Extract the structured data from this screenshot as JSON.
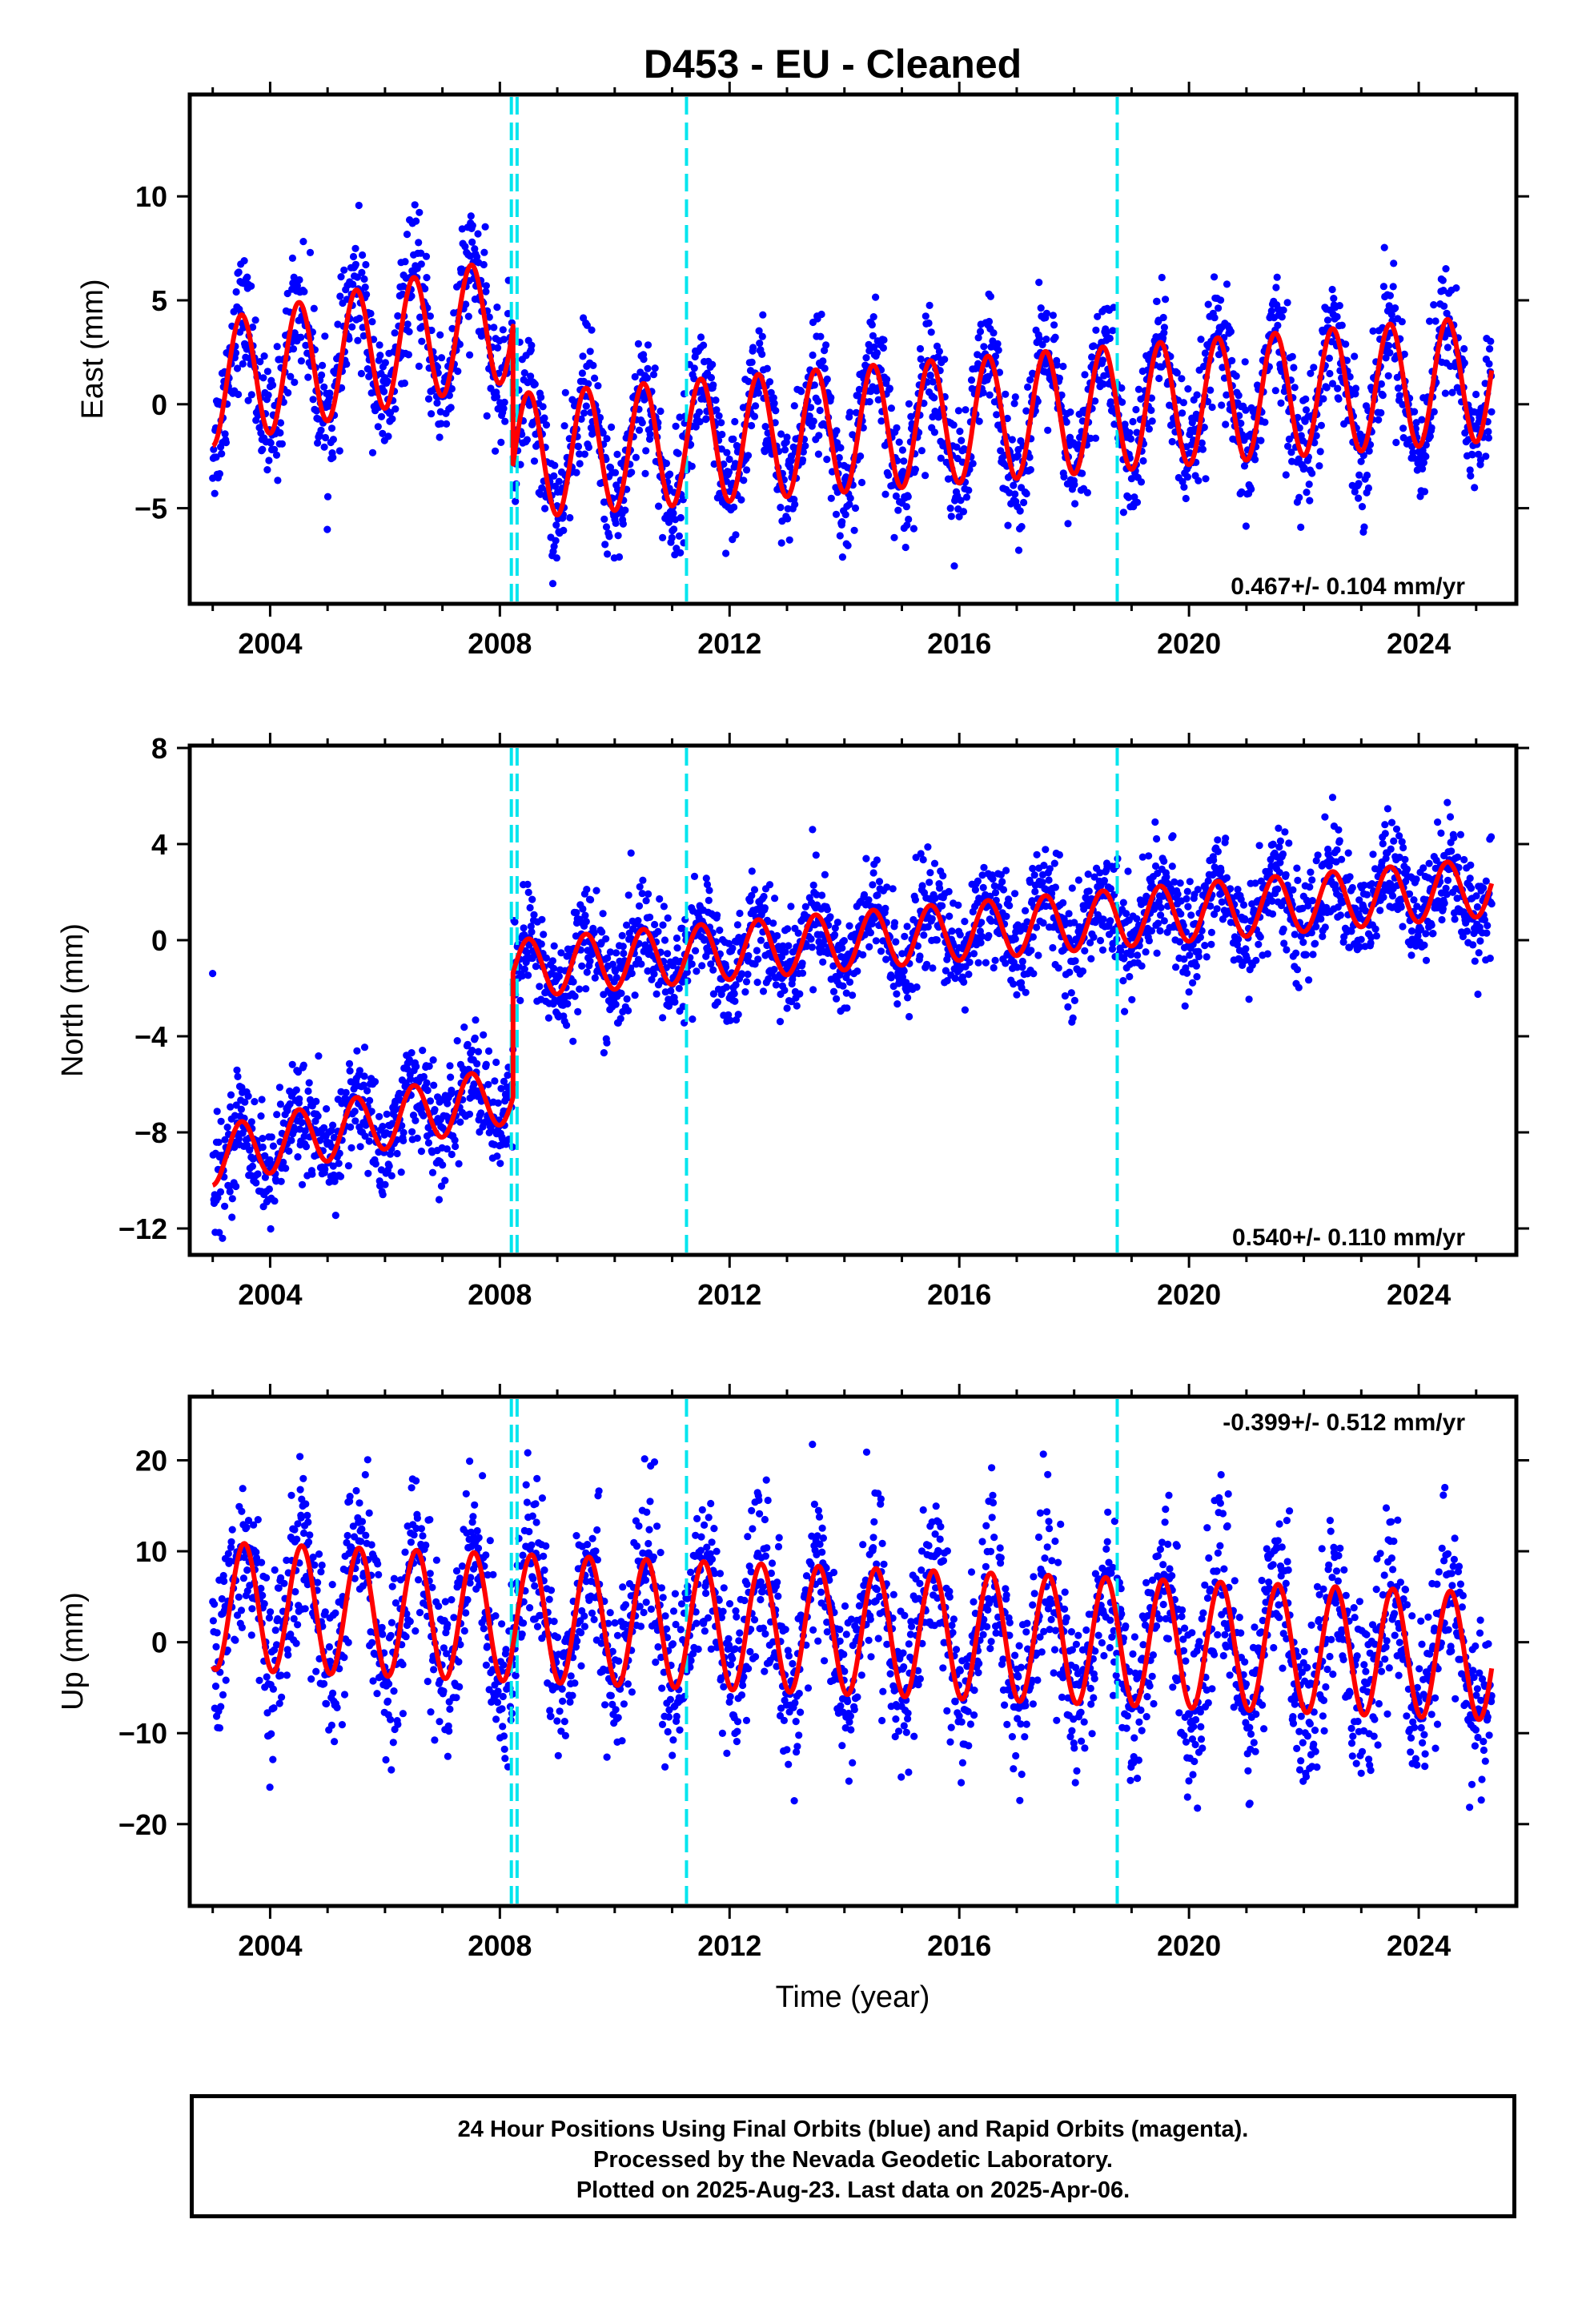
{
  "title": "D453  - EU - Cleaned",
  "xlabel": "Time (year)",
  "footer": {
    "line1": "24 Hour Positions Using Final Orbits (blue) and Rapid Orbits (magenta).",
    "line2": "Processed by the Nevada Geodetic Laboratory.",
    "line3": "Plotted on 2025-Aug-23. Last data on 2025-Apr-06."
  },
  "colors": {
    "observations": "#0000ff",
    "model": "#ff0000",
    "steps": "#00e5ee"
  },
  "chart_data": [
    {
      "type": "scatter",
      "ylabel": "East (mm)",
      "rate_label": "0.467+/- 0.104 mm/yr",
      "xlim": [
        2002.6,
        2025.7
      ],
      "ylim": [
        -9.6,
        14.9
      ],
      "xticks": [
        2004,
        2008,
        2012,
        2016,
        2020,
        2024
      ],
      "xtick_labels": [
        "2004",
        "2008",
        "2012",
        "2016",
        "2020",
        "2024"
      ],
      "yticks": [
        -5,
        0,
        5,
        10
      ],
      "ytick_labels": [
        "−5",
        "0",
        "5",
        "10"
      ],
      "step_lines": [
        2008.2,
        2008.3,
        2011.25,
        2018.75
      ],
      "data_range": [
        2003.0,
        2025.27
      ],
      "model": {
        "segments": [
          {
            "t0": 2003.0,
            "t1": 2008.23,
            "offset_start": 1.0,
            "trend_mm_per_yr": 0.6,
            "amplitude": 3.0,
            "peak_phase": 0.5
          },
          {
            "t0": 2008.23,
            "t1": 2025.27,
            "offset_start": -2.5,
            "trend_mm_per_yr": 0.22,
            "amplitude": 3.0,
            "peak_phase": 0.5
          }
        ]
      },
      "scatter_sigma": 1.5
    },
    {
      "type": "scatter",
      "ylabel": "North (mm)",
      "rate_label": "0.540+/- 0.110 mm/yr",
      "xlim": [
        2002.6,
        2025.7
      ],
      "ylim": [
        -13.1,
        8.1
      ],
      "xticks": [
        2004,
        2008,
        2012,
        2016,
        2020,
        2024
      ],
      "xtick_labels": [
        "2004",
        "2008",
        "2012",
        "2016",
        "2020",
        "2024"
      ],
      "yticks": [
        -12,
        -8,
        -4,
        0,
        4,
        8
      ],
      "ytick_labels": [
        "−12",
        "−8",
        "−4",
        "0",
        "4",
        "8"
      ],
      "step_lines": [
        2008.2,
        2008.3,
        2011.25,
        2018.75
      ],
      "data_range": [
        2003.0,
        2025.27
      ],
      "model": {
        "segments": [
          {
            "t0": 2003.0,
            "t1": 2008.23,
            "offset_start": -9.0,
            "trend_mm_per_yr": 0.5,
            "amplitude": 1.2,
            "peak_phase": 0.5
          },
          {
            "t0": 2008.23,
            "t1": 2025.27,
            "offset_start": -1.2,
            "trend_mm_per_yr": 0.2,
            "amplitude": 1.2,
            "peak_phase": 0.5
          }
        ]
      },
      "scatter_sigma": 1.1
    },
    {
      "type": "scatter",
      "ylabel": "Up (mm)",
      "rate_label": "-0.399+/- 0.512 mm/yr",
      "xlim": [
        2002.6,
        2025.7
      ],
      "ylim": [
        -29.0,
        27.0
      ],
      "xticks": [
        2004,
        2008,
        2012,
        2016,
        2020,
        2024
      ],
      "xtick_labels": [
        "2004",
        "2008",
        "2012",
        "2016",
        "2020",
        "2024"
      ],
      "yticks": [
        -20,
        -10,
        0,
        10,
        20
      ],
      "ytick_labels": [
        "−20",
        "−10",
        "0",
        "10",
        "20"
      ],
      "step_lines": [
        2008.2,
        2008.3,
        2011.25,
        2018.75
      ],
      "data_range": [
        2003.0,
        2025.27
      ],
      "model": {
        "segments": [
          {
            "t0": 2003.0,
            "t1": 2025.27,
            "offset_start": 4.0,
            "trend_mm_per_yr": -0.25,
            "amplitude": 7.0,
            "peak_phase": 0.55
          }
        ]
      },
      "scatter_sigma": 4.5
    }
  ]
}
